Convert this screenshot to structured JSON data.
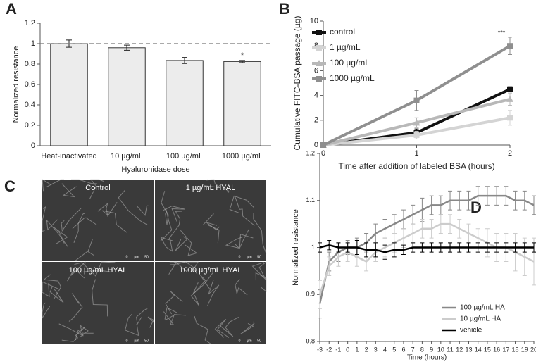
{
  "chart_data": [
    {
      "type": "bar",
      "panel": "A",
      "ylabel": "Normalized resistance",
      "xlabel": "Hyaluronidase dose",
      "categories": [
        "Heat-inactivated",
        "10 µg/mL",
        "100 µg/mL",
        "1000 µg/mL"
      ],
      "values": [
        1.0,
        0.96,
        0.835,
        0.825
      ],
      "errors": [
        0.035,
        0.025,
        0.03,
        0.01
      ],
      "significance": [
        null,
        null,
        null,
        "*"
      ],
      "reference_line": 1,
      "color": "#ececec",
      "ylim": [
        0,
        1.2
      ],
      "yticks": [
        0,
        0.2,
        0.4,
        0.6,
        0.8,
        1,
        1.2
      ],
      "grid": false
    },
    {
      "type": "line",
      "panel": "B",
      "ylabel": "Cumulative FITC-BSA passage (µg)",
      "xlabel": "Time after addition of labeled BSA (hours)",
      "x": [
        0,
        1,
        2
      ],
      "xlim": [
        0,
        2
      ],
      "xticks": [
        0,
        1,
        2
      ],
      "ylim": [
        0,
        10
      ],
      "yticks": [
        0,
        2,
        4,
        6,
        8,
        10
      ],
      "legend": "upper left",
      "grid": false,
      "series": [
        {
          "name": "control",
          "color": "#111111",
          "marker": "square",
          "values": [
            0,
            1,
            4.5
          ],
          "errors": [
            0,
            0.3,
            0.2
          ],
          "significance": [
            null,
            null,
            null
          ]
        },
        {
          "name": "1 µg/mL",
          "color": "#d4d4d4",
          "marker": "square",
          "values": [
            0,
            0.8,
            2.2
          ],
          "errors": [
            0,
            0.3,
            0.6
          ],
          "significance": [
            null,
            null,
            null
          ]
        },
        {
          "name": "100 µg/mL",
          "color": "#b8b8b8",
          "marker": "triangle",
          "values": [
            0,
            1.8,
            3.7
          ],
          "errors": [
            0,
            0.4,
            0.5
          ],
          "significance": [
            null,
            null,
            null
          ]
        },
        {
          "name": "1000 µg/mL",
          "color": "#8f8f8f",
          "marker": "square",
          "values": [
            0,
            3.6,
            8.0
          ],
          "errors": [
            0,
            0.8,
            0.7
          ],
          "significance": [
            null,
            null,
            "***"
          ]
        }
      ]
    },
    {
      "type": "line",
      "panel": "D",
      "ylabel": "Normalized resistance",
      "xlabel": "Time (hours)",
      "x": [
        -3,
        -2,
        -1,
        0,
        1,
        2,
        3,
        4,
        5,
        6,
        7,
        8,
        9,
        10,
        11,
        12,
        13,
        14,
        15,
        16,
        17,
        18,
        19,
        20
      ],
      "xlim": [
        -3,
        20
      ],
      "xticks": [
        -3,
        -2,
        -1,
        0,
        1,
        2,
        3,
        4,
        5,
        6,
        7,
        8,
        9,
        10,
        11,
        12,
        13,
        14,
        15,
        16,
        17,
        18,
        19,
        20
      ],
      "ylim": [
        0.8,
        1.2
      ],
      "yticks": [
        0.8,
        0.9,
        1,
        1.1,
        1.2
      ],
      "legend": "lower right",
      "grid": false,
      "series": [
        {
          "name": "100 µg/mL HA",
          "color": "#888888",
          "values": [
            0.88,
            0.97,
            0.99,
            1.0,
            1.0,
            1.01,
            1.03,
            1.04,
            1.05,
            1.06,
            1.07,
            1.08,
            1.09,
            1.09,
            1.1,
            1.1,
            1.1,
            1.11,
            1.11,
            1.11,
            1.11,
            1.1,
            1.1,
            1.09
          ],
          "errors": [
            0.03,
            0.02,
            0.02,
            0.015,
            0.02,
            0.02,
            0.02,
            0.02,
            0.02,
            0.02,
            0.02,
            0.025,
            0.02,
            0.02,
            0.02,
            0.02,
            0.02,
            0.02,
            0.02,
            0.02,
            0.02,
            0.02,
            0.02,
            0.02
          ]
        },
        {
          "name": "10 µg/mL HA",
          "color": "#cccccc",
          "values": [
            0.9,
            0.96,
            0.98,
            0.99,
            0.98,
            0.97,
            0.99,
            1.0,
            1.01,
            1.02,
            1.03,
            1.04,
            1.04,
            1.05,
            1.05,
            1.04,
            1.03,
            1.02,
            1.01,
            1.0,
            1.0,
            0.99,
            0.98,
            0.97
          ],
          "errors": [
            0.03,
            0.02,
            0.02,
            0.02,
            0.02,
            0.02,
            0.02,
            0.02,
            0.02,
            0.02,
            0.02,
            0.02,
            0.02,
            0.02,
            0.02,
            0.02,
            0.02,
            0.02,
            0.03,
            0.03,
            0.03,
            0.04,
            0.04,
            0.05
          ]
        },
        {
          "name": "vehicle",
          "color": "#000000",
          "values": [
            1.0,
            1.005,
            1.0,
            1.0,
            1.0,
            0.995,
            0.995,
            0.99,
            0.995,
            0.995,
            1.0,
            1.0,
            1.0,
            1.0,
            1.0,
            1.0,
            1.0,
            1.0,
            1.0,
            1.0,
            1.0,
            1.0,
            1.0,
            1.0
          ],
          "errors": [
            0.01,
            0.01,
            0.01,
            0.01,
            0.015,
            0.015,
            0.015,
            0.015,
            0.015,
            0.01,
            0.01,
            0.01,
            0.01,
            0.01,
            0.01,
            0.01,
            0.01,
            0.01,
            0.01,
            0.01,
            0.01,
            0.01,
            0.01,
            0.01
          ]
        }
      ]
    }
  ],
  "micrographs": {
    "panel": "C",
    "labels": [
      "Control",
      "1 µg/mL HYAL",
      "100 µg/mL HYAL",
      "1000 µg/mL HYAL"
    ],
    "scale": [
      "0",
      "µm",
      "50"
    ]
  }
}
